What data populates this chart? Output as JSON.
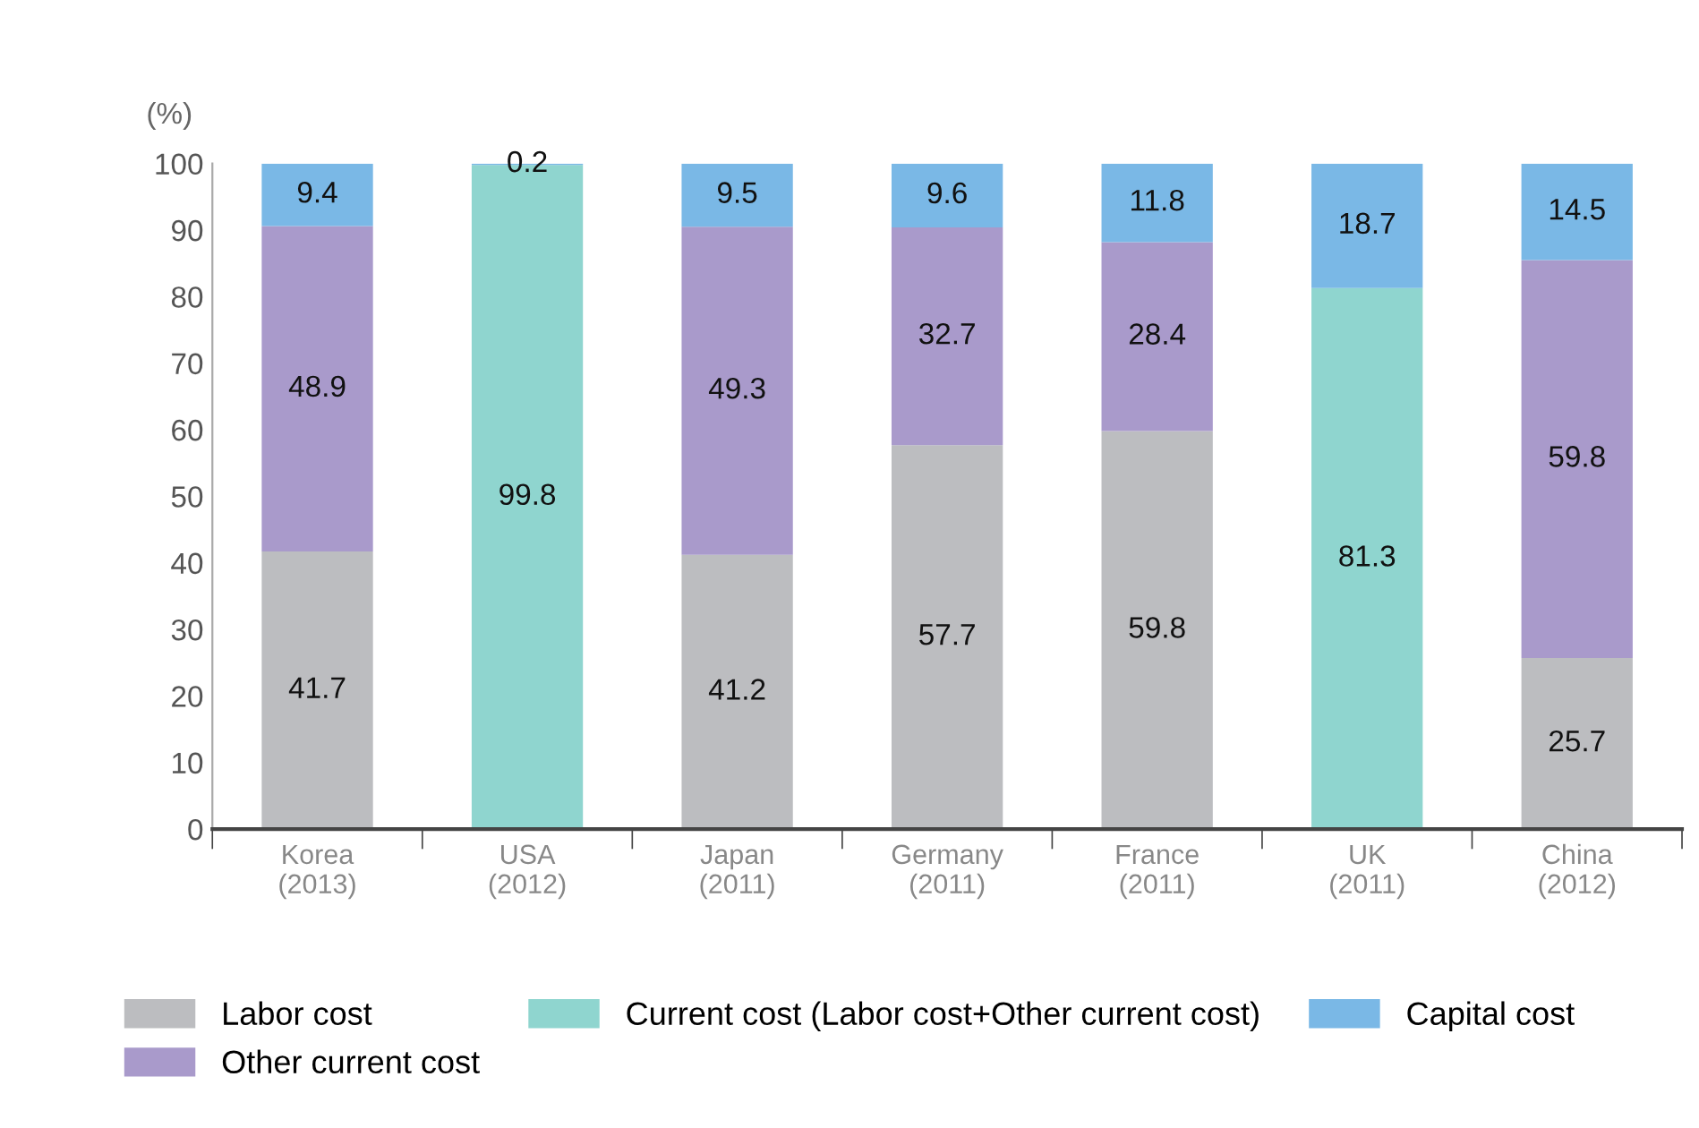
{
  "chart_data": {
    "type": "bar",
    "stacked": true,
    "ylabel": "(%)",
    "categories": [
      "Korea\n(2013)",
      "USA\n(2012)",
      "Japan\n(2011)",
      "Germany\n(2011)",
      "France\n(2011)",
      "UK\n(2011)",
      "China\n(2012)"
    ],
    "series": [
      {
        "name": "Labor cost",
        "color": "#bcbdc0",
        "values": [
          41.7,
          null,
          41.2,
          57.7,
          59.8,
          null,
          25.7
        ]
      },
      {
        "name": "Other current cost",
        "color": "#a99acb",
        "values": [
          48.9,
          null,
          49.3,
          32.7,
          28.4,
          null,
          59.8
        ]
      },
      {
        "name": "Current cost (Labor cost+Other current cost)",
        "color": "#8fd5cf",
        "values": [
          null,
          99.8,
          null,
          null,
          null,
          81.3,
          null
        ]
      },
      {
        "name": "Capital cost",
        "color": "#7ab8e6",
        "values": [
          9.4,
          0.2,
          9.5,
          9.6,
          11.8,
          18.7,
          14.5
        ]
      }
    ],
    "ylim": [
      0,
      100
    ],
    "yticks": [
      0,
      10,
      20,
      30,
      40,
      50,
      60,
      70,
      80,
      90,
      100
    ],
    "data_labels": true,
    "legend": "bottom",
    "grid": false
  }
}
